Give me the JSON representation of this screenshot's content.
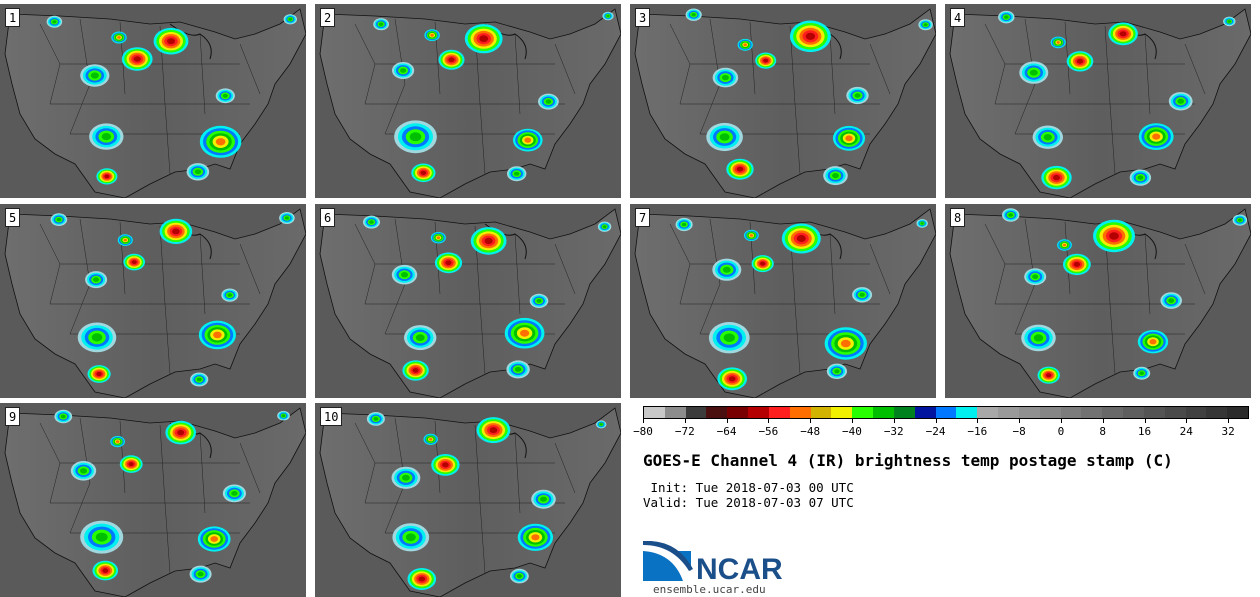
{
  "panels": [
    {
      "label": "1"
    },
    {
      "label": "2"
    },
    {
      "label": "3"
    },
    {
      "label": "4"
    },
    {
      "label": "5"
    },
    {
      "label": "6"
    },
    {
      "label": "7"
    },
    {
      "label": "8"
    },
    {
      "label": "9"
    },
    {
      "label": "10"
    }
  ],
  "colorbar": {
    "colors": [
      "#c8c8c8",
      "#8c8c8c",
      "#3c3c3c",
      "#4a1010",
      "#780000",
      "#b40000",
      "#ff1e1e",
      "#ff6e00",
      "#d2b400",
      "#f0f000",
      "#28ff00",
      "#00be00",
      "#00821e",
      "#0014a0",
      "#0078ff",
      "#00f0f0",
      "#a8a8a8",
      "#9a9a9a",
      "#909090",
      "#868686",
      "#7c7c7c",
      "#727272",
      "#686868",
      "#5e5e5e",
      "#545454",
      "#4a4a4a",
      "#404040",
      "#363636",
      "#2c2c2c"
    ],
    "ticks": [
      "−80",
      "−72",
      "−64",
      "−56",
      "−48",
      "−40",
      "−32",
      "−24",
      "−16",
      "−8",
      "0",
      "8",
      "16",
      "24",
      "32"
    ]
  },
  "title": "GOES-E Channel 4 (IR) brightness temp postage stamp (C)",
  "init_line": " Init: Tue 2018-07-03 00 UTC",
  "valid_line": "Valid: Tue 2018-07-03 07 UTC",
  "logo": {
    "text": "NCAR",
    "url": "ensemble.ucar.edu"
  }
}
